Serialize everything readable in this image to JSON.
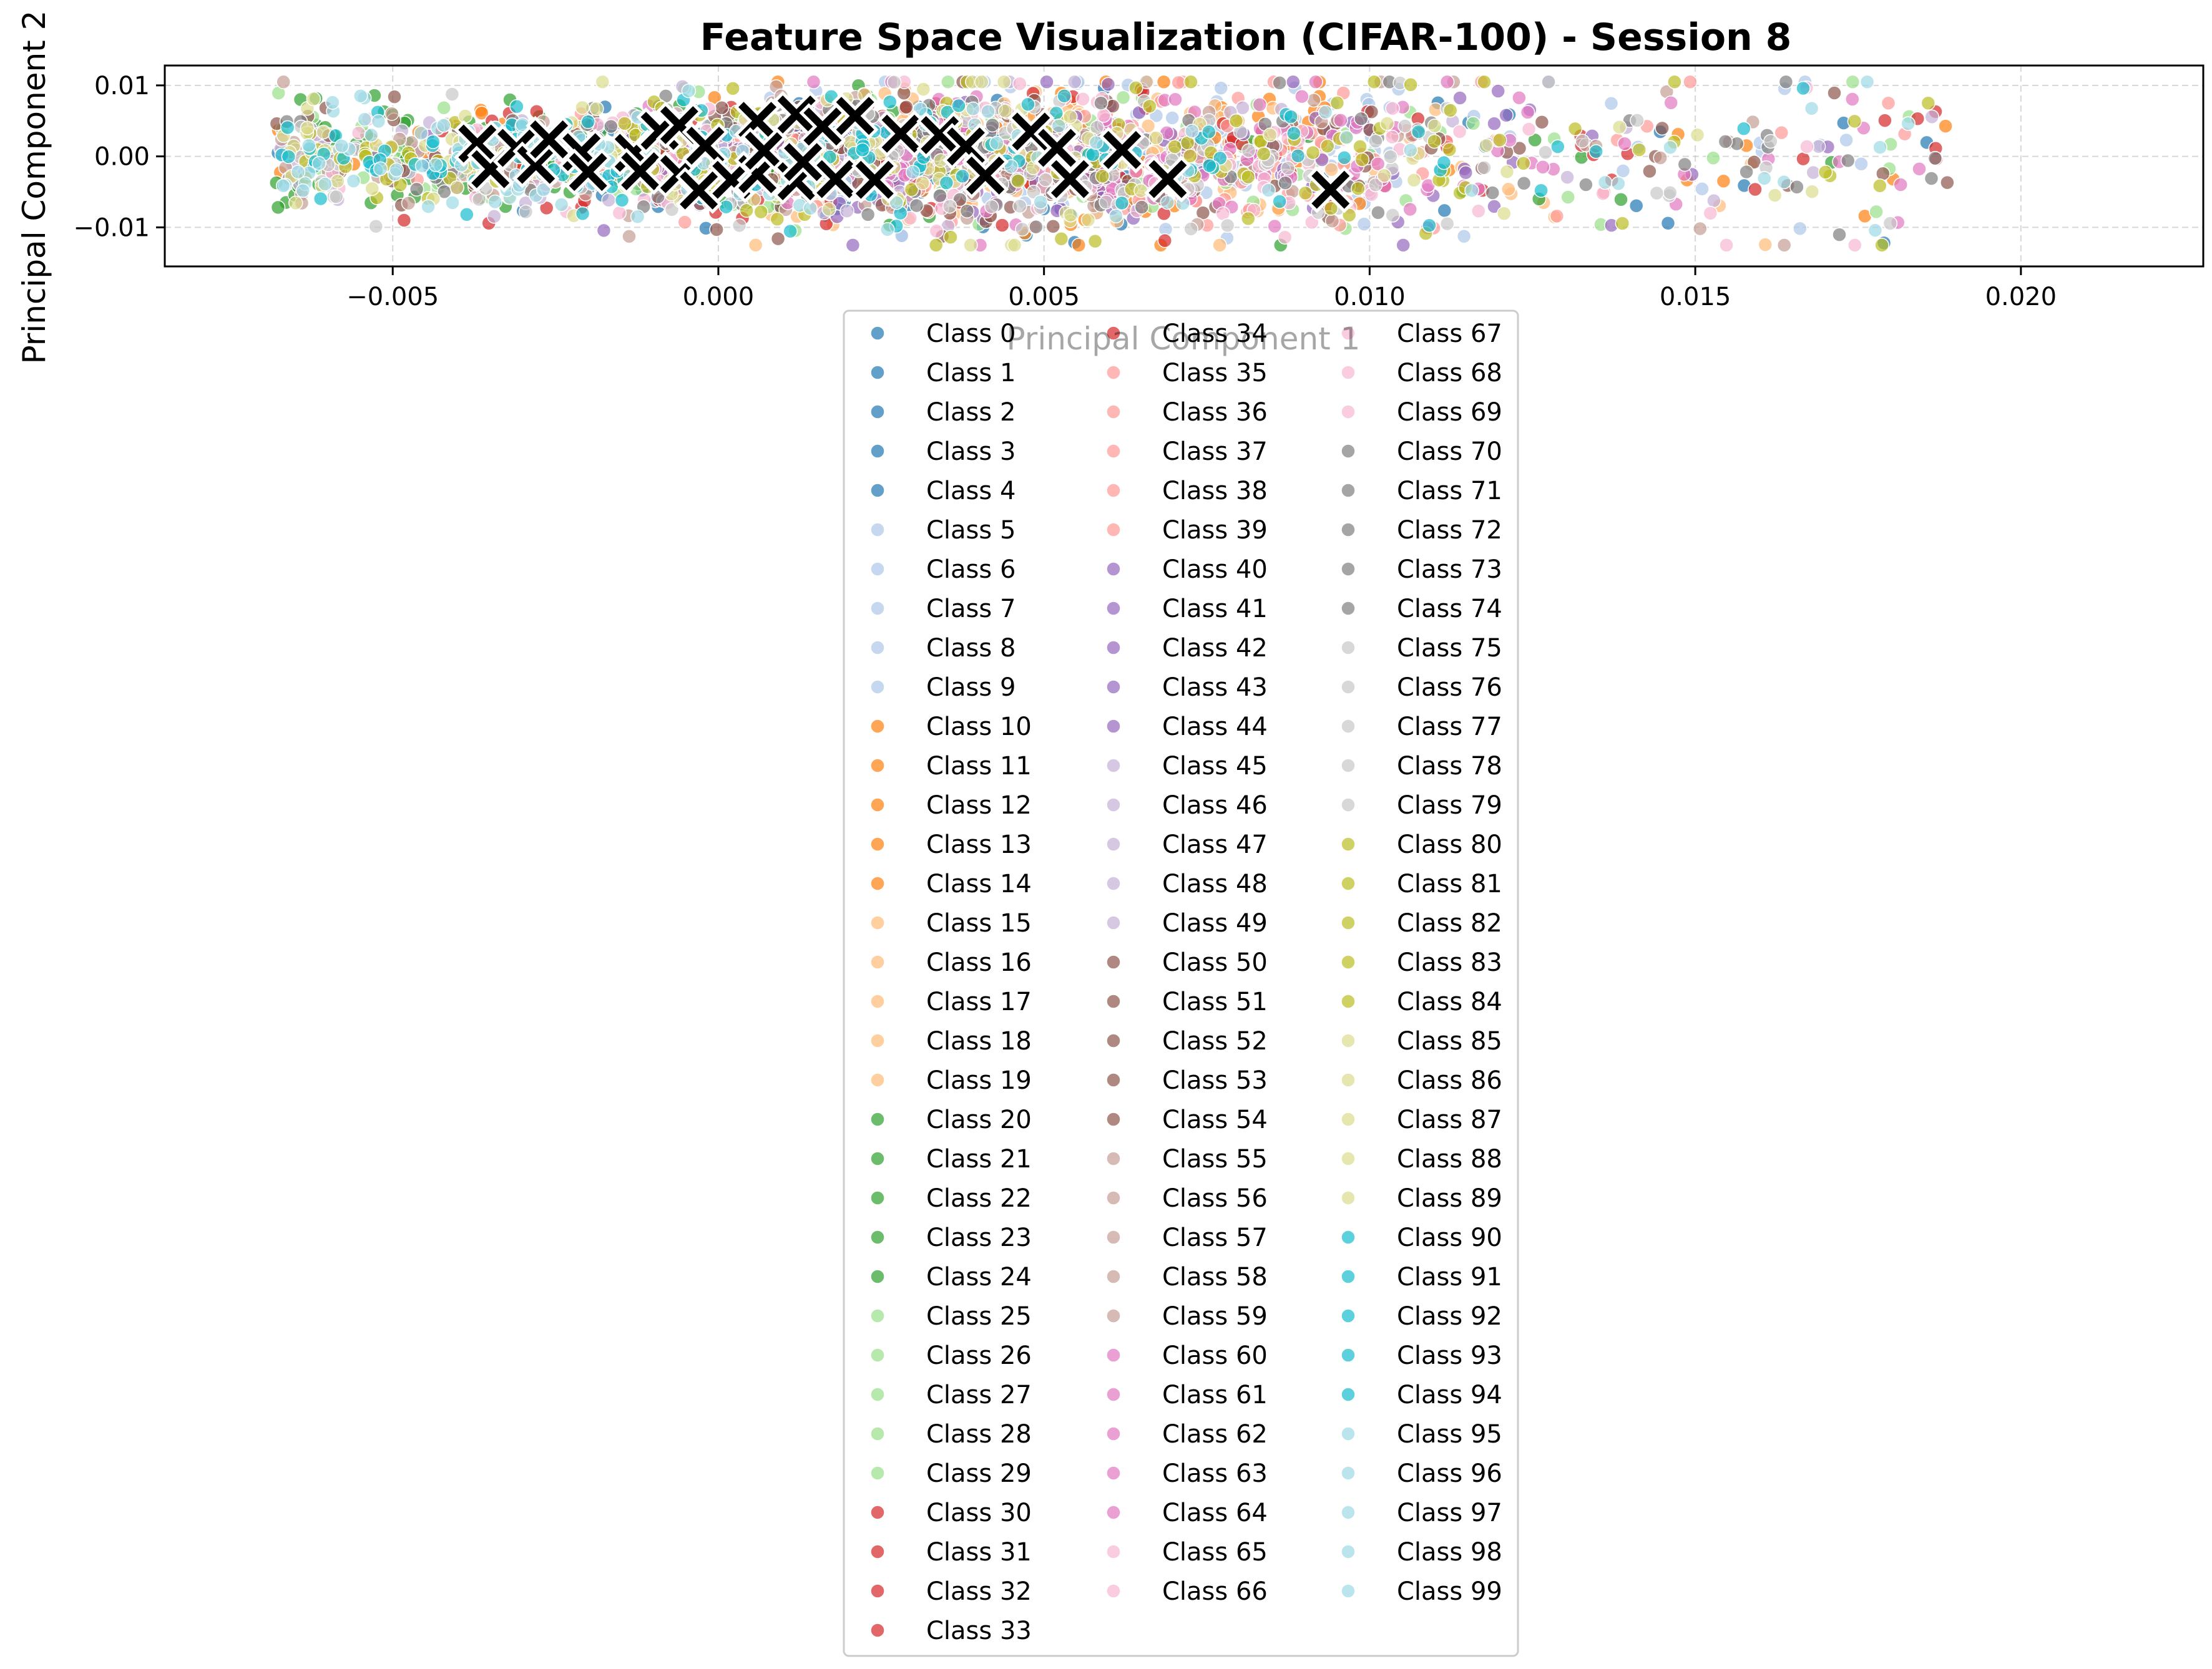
{
  "chart_data": {
    "type": "scatter",
    "title": "Feature Space Visualization (CIFAR-100) - Session 8",
    "xlabel": "Principal Component 1",
    "ylabel": "Principal Component 2",
    "xlim": [
      -0.0085,
      0.0228
    ],
    "ylim": [
      -0.0155,
      0.0128
    ],
    "xticks": [
      -0.005,
      0.0,
      0.005,
      0.01,
      0.015,
      0.02
    ],
    "xtick_labels": [
      "−0.005",
      "0.000",
      "0.005",
      "0.010",
      "0.015",
      "0.020"
    ],
    "yticks": [
      -0.01,
      0.0,
      0.01
    ],
    "ytick_labels": [
      "−0.01",
      "0.00",
      "0.01"
    ],
    "grid": true,
    "legend": {
      "placement": "below-plot",
      "columns": 3,
      "entries": [
        "Class 0",
        "Class 1",
        "Class 2",
        "Class 3",
        "Class 4",
        "Class 5",
        "Class 6",
        "Class 7",
        "Class 8",
        "Class 9",
        "Class 10",
        "Class 11",
        "Class 12",
        "Class 13",
        "Class 14",
        "Class 15",
        "Class 16",
        "Class 17",
        "Class 18",
        "Class 19",
        "Class 20",
        "Class 21",
        "Class 22",
        "Class 23",
        "Class 24",
        "Class 25",
        "Class 26",
        "Class 27",
        "Class 28",
        "Class 29",
        "Class 30",
        "Class 31",
        "Class 32",
        "Class 33",
        "Class 34",
        "Class 35",
        "Class 36",
        "Class 37",
        "Class 38",
        "Class 39",
        "Class 40",
        "Class 41",
        "Class 42",
        "Class 43",
        "Class 44",
        "Class 45",
        "Class 46",
        "Class 47",
        "Class 48",
        "Class 49",
        "Class 50",
        "Class 51",
        "Class 52",
        "Class 53",
        "Class 54",
        "Class 55",
        "Class 56",
        "Class 57",
        "Class 58",
        "Class 59",
        "Class 60",
        "Class 61",
        "Class 62",
        "Class 63",
        "Class 64",
        "Class 65",
        "Class 66",
        "Class 67",
        "Class 68",
        "Class 69",
        "Class 70",
        "Class 71",
        "Class 72",
        "Class 73",
        "Class 74",
        "Class 75",
        "Class 76",
        "Class 77",
        "Class 78",
        "Class 79",
        "Class 80",
        "Class 81",
        "Class 82",
        "Class 83",
        "Class 84",
        "Class 85",
        "Class 86",
        "Class 87",
        "Class 88",
        "Class 89",
        "Class 90",
        "Class 91",
        "Class 92",
        "Class 93",
        "Class 94",
        "Class 95",
        "Class 96",
        "Class 97",
        "Class 98",
        "Class 99"
      ]
    },
    "palette": [
      "#1f77b4",
      "#aec7e8",
      "#ff7f0e",
      "#ffbb78",
      "#2ca02c",
      "#98df8a",
      "#d62728",
      "#ff9896",
      "#9467bd",
      "#c5b0d5",
      "#8c564b",
      "#c49c94",
      "#e377c2",
      "#f7b6d2",
      "#7f7f7f",
      "#c7c7c7",
      "#bcbd22",
      "#dbdb8d",
      "#17becf",
      "#9edae5"
    ],
    "classes_per_color": 5,
    "point_alpha": 0.7,
    "prototype_color": "#000000",
    "prototypes": [
      [
        -0.0037,
        0.0018
      ],
      [
        -0.0035,
        -0.0018
      ],
      [
        -0.0031,
        0.0012
      ],
      [
        -0.0028,
        -0.0012
      ],
      [
        -0.0026,
        0.0024
      ],
      [
        -0.0021,
        0.0006
      ],
      [
        -0.002,
        -0.0022
      ],
      [
        -0.0013,
        0.0005
      ],
      [
        -0.0012,
        -0.0021
      ],
      [
        -0.0009,
        0.0036
      ],
      [
        -0.0006,
        0.0044
      ],
      [
        -0.0006,
        -0.0025
      ],
      [
        -0.0003,
        -0.0048
      ],
      [
        -0.0002,
        0.0015
      ],
      [
        0.0002,
        -0.0033
      ],
      [
        0.0006,
        0.005
      ],
      [
        0.0006,
        -0.0025
      ],
      [
        0.0007,
        0.0008
      ],
      [
        0.0012,
        0.0059
      ],
      [
        0.0012,
        -0.0035
      ],
      [
        0.0013,
        -0.0008
      ],
      [
        0.0016,
        0.0042
      ],
      [
        0.0018,
        -0.0032
      ],
      [
        0.0021,
        0.0057
      ],
      [
        0.0024,
        -0.0033
      ],
      [
        0.0028,
        0.0032
      ],
      [
        0.0034,
        0.003
      ],
      [
        0.0038,
        0.0014
      ],
      [
        0.0041,
        -0.0027
      ],
      [
        0.0048,
        0.0035
      ],
      [
        0.0052,
        0.0012
      ],
      [
        0.0054,
        -0.0032
      ],
      [
        0.0062,
        0.0009
      ],
      [
        0.0069,
        -0.0032
      ],
      [
        0.0094,
        -0.0047
      ]
    ]
  }
}
